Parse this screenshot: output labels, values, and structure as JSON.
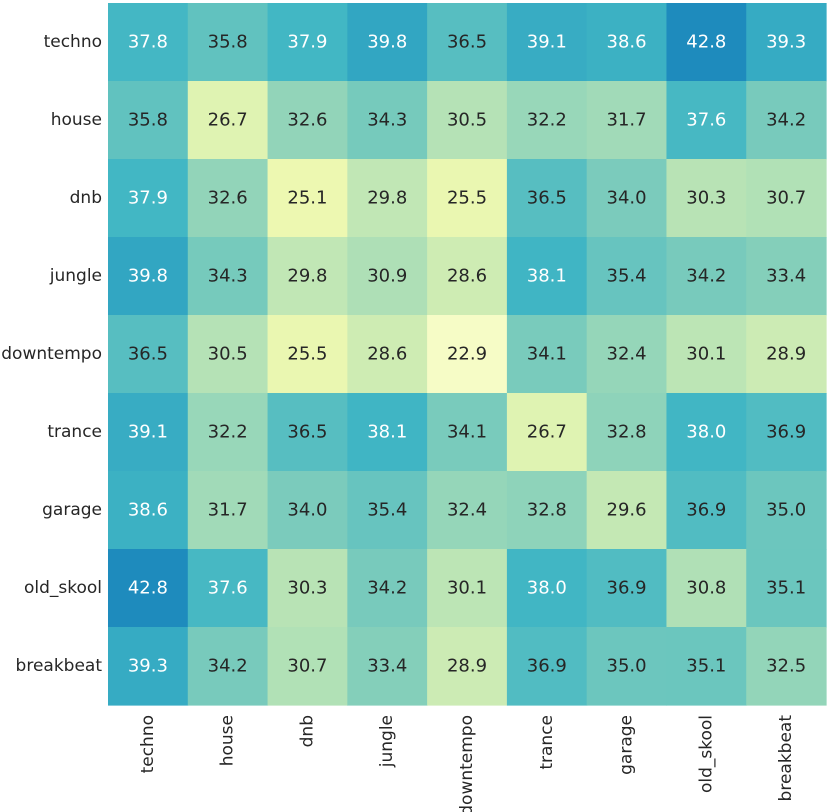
{
  "chart_data": {
    "type": "heatmap",
    "title": "",
    "xlabel": "",
    "ylabel": "",
    "rows": [
      "techno",
      "house",
      "dnb",
      "jungle",
      "downtempo",
      "trance",
      "garage",
      "old_skool",
      "breakbeat"
    ],
    "columns": [
      "techno",
      "house",
      "dnb",
      "jungle",
      "downtempo",
      "trance",
      "garage",
      "old_skool",
      "breakbeat"
    ],
    "values": [
      [
        37.8,
        35.8,
        37.9,
        39.8,
        36.5,
        39.1,
        38.6,
        42.8,
        39.3
      ],
      [
        35.8,
        26.7,
        32.6,
        34.3,
        30.5,
        32.2,
        31.7,
        37.6,
        34.2
      ],
      [
        37.9,
        32.6,
        25.1,
        29.8,
        25.5,
        36.5,
        34.0,
        30.3,
        30.7
      ],
      [
        39.8,
        34.3,
        29.8,
        30.9,
        28.6,
        38.1,
        35.4,
        34.2,
        33.4
      ],
      [
        36.5,
        30.5,
        25.5,
        28.6,
        22.9,
        34.1,
        32.4,
        30.1,
        28.9
      ],
      [
        39.1,
        32.2,
        36.5,
        38.1,
        34.1,
        26.7,
        32.8,
        38.0,
        36.9
      ],
      [
        38.6,
        31.7,
        34.0,
        35.4,
        32.4,
        32.8,
        29.6,
        36.9,
        35.0
      ],
      [
        42.8,
        37.6,
        30.3,
        34.2,
        30.1,
        38.0,
        36.9,
        30.8,
        35.1
      ],
      [
        39.3,
        34.2,
        30.7,
        33.4,
        28.9,
        36.9,
        35.0,
        35.1,
        32.5
      ]
    ],
    "value_format": "0.1f",
    "colormap": "YlGnBu",
    "color_range": [
      22.9,
      42.8
    ],
    "colorbar": false,
    "grid": false,
    "colors": {
      "light_text": "#ffffff",
      "dark_text": "#262626"
    }
  }
}
